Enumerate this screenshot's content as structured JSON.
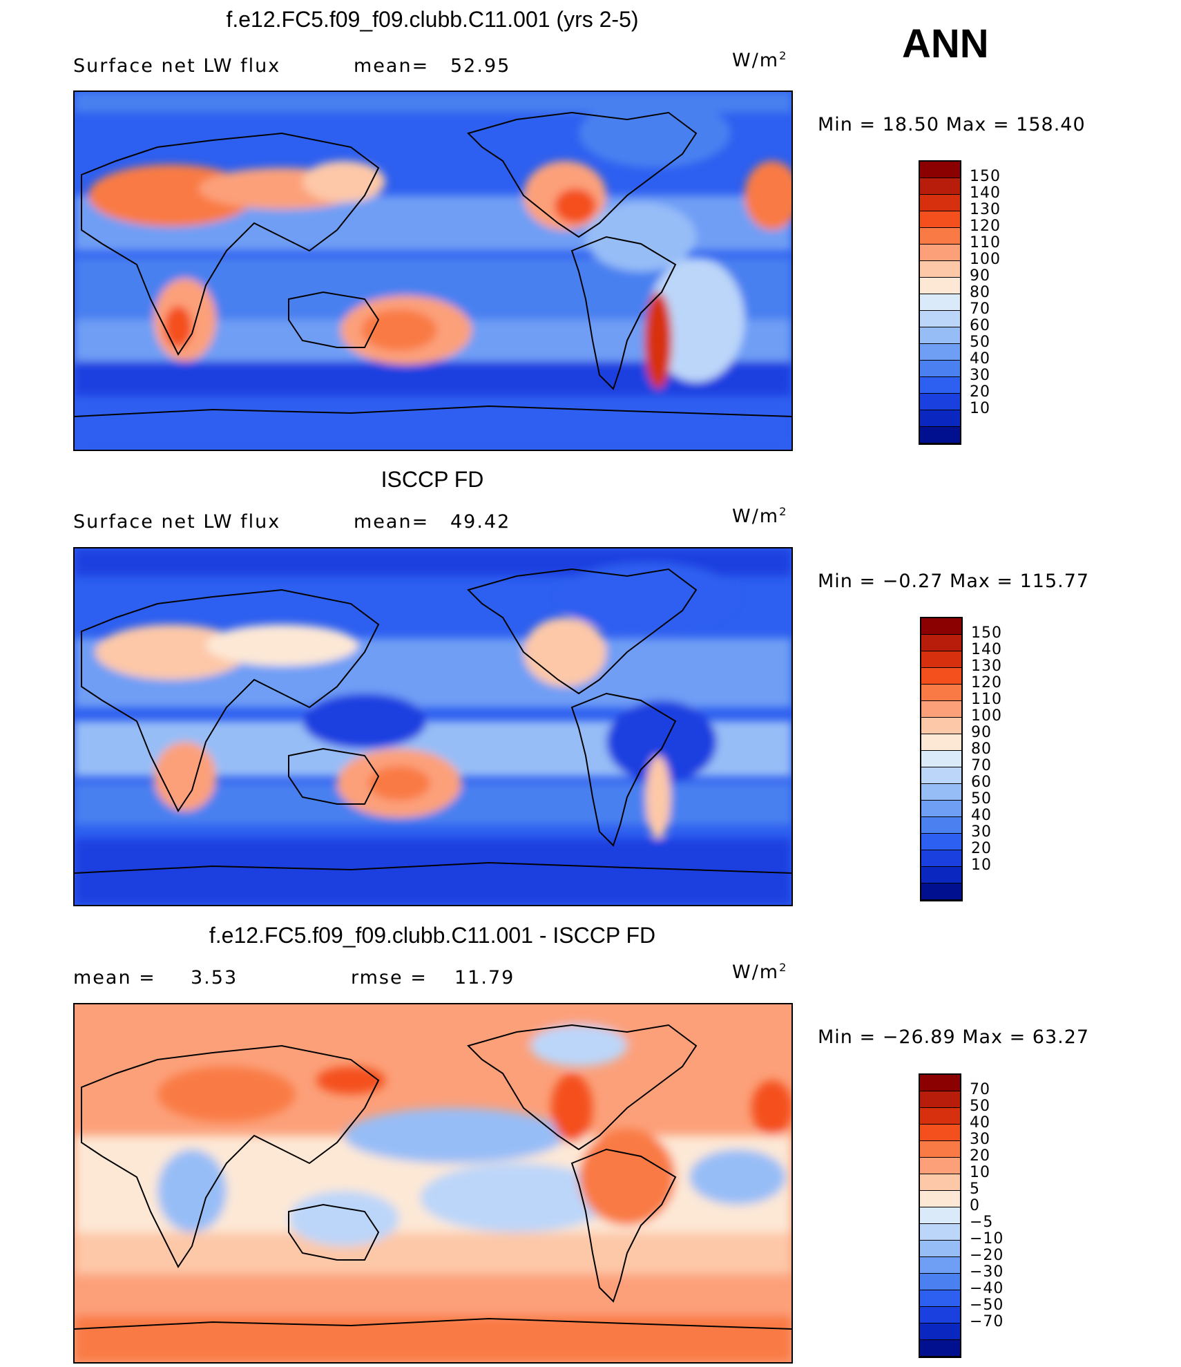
{
  "season": "ANN",
  "units_prefix": "W/m",
  "units_exponent": "2",
  "panels": [
    {
      "id": "model",
      "title": "f.e12.FC5.f09_f09.clubb.C11.001 (yrs 2-5)",
      "left_label": "Surface  net  LW  flux",
      "mean_label": "mean=",
      "mean_value": "52.95",
      "minmax": "Min  =    18.50  Max  =  158.40",
      "colorbar": {
        "colors": [
          "#8b0000",
          "#b81c0a",
          "#d7300f",
          "#f4501e",
          "#f97a45",
          "#fca07a",
          "#fdc8a8",
          "#fde8d6",
          "#dbeaf8",
          "#bcd6f9",
          "#97bdf7",
          "#6f9ef5",
          "#4a80f0",
          "#2d5ff0",
          "#1a40e0",
          "#0a28c0",
          "#00108f"
        ],
        "labels": [
          "150",
          "140",
          "130",
          "120",
          "110",
          "100",
          "90",
          "80",
          "70",
          "60",
          "50",
          "40",
          "30",
          "20",
          "10"
        ]
      }
    },
    {
      "id": "obs",
      "title": "ISCCP FD",
      "left_label": "Surface  net  LW  flux",
      "mean_label": "mean=",
      "mean_value": "49.42",
      "minmax": "Min  =    −0.27  Max  =  115.77",
      "colorbar": {
        "colors": [
          "#8b0000",
          "#b81c0a",
          "#d7300f",
          "#f4501e",
          "#f97a45",
          "#fca07a",
          "#fdc8a8",
          "#fde8d6",
          "#dbeaf8",
          "#bcd6f9",
          "#97bdf7",
          "#6f9ef5",
          "#4a80f0",
          "#2d5ff0",
          "#1a40e0",
          "#0a28c0",
          "#00108f"
        ],
        "labels": [
          "150",
          "140",
          "130",
          "120",
          "110",
          "100",
          "90",
          "80",
          "70",
          "60",
          "50",
          "40",
          "30",
          "20",
          "10"
        ]
      }
    },
    {
      "id": "diff",
      "title": "f.e12.FC5.f09_f09.clubb.C11.001 - ISCCP FD",
      "left_label": "mean  =",
      "mean_label": "",
      "mean_value": "3.53",
      "rmse_label": "rmse  =",
      "rmse_value": "11.79",
      "minmax": "Min  =  −26.89  Max  =    63.27",
      "colorbar": {
        "colors": [
          "#8b0000",
          "#b81c0a",
          "#d7300f",
          "#f4501e",
          "#f97a45",
          "#fca07a",
          "#fdc8a8",
          "#fde8d6",
          "#dbeaf8",
          "#bcd6f9",
          "#97bdf7",
          "#6f9ef5",
          "#4a80f0",
          "#2d5ff0",
          "#1a40e0",
          "#0a28c0",
          "#00108f"
        ],
        "labels": [
          "70",
          "50",
          "40",
          "30",
          "20",
          "10",
          "5",
          "0",
          "−5",
          "−10",
          "−20",
          "−30",
          "−40",
          "−50",
          "−70"
        ]
      }
    }
  ]
}
